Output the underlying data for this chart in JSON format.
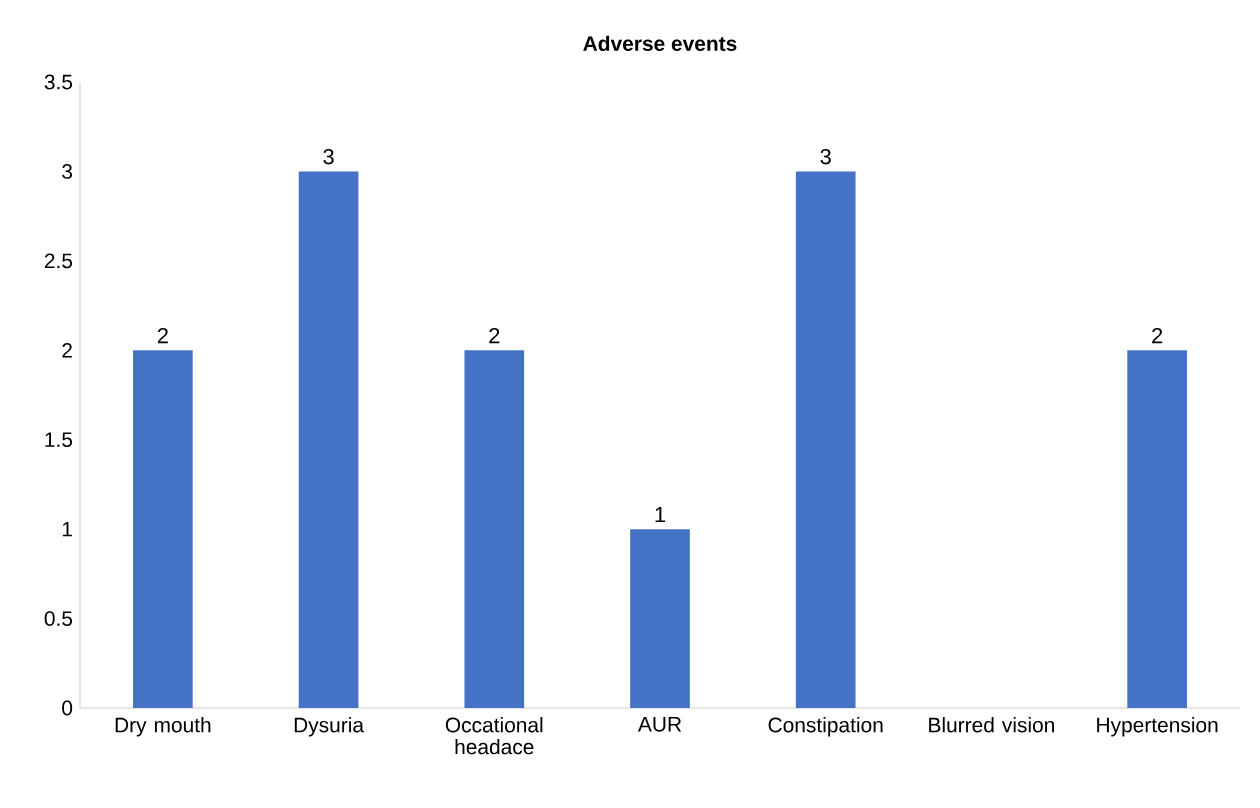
{
  "chart_data": {
    "type": "bar",
    "title": "Adverse events",
    "categories": [
      "Dry mouth",
      "Dysuria",
      "Occational headace",
      "AUR",
      "Constipation",
      "Blurred vision",
      "Hypertension"
    ],
    "values": [
      2,
      3,
      2,
      1,
      3,
      0,
      2
    ],
    "value_labels": [
      "2",
      "3",
      "2",
      "1",
      "3",
      null,
      "2"
    ],
    "color": "#4472c4",
    "ylim": [
      0,
      3.5
    ],
    "yticks": [
      0,
      0.5,
      1,
      1.5,
      2,
      2.5,
      3,
      3.5
    ]
  }
}
